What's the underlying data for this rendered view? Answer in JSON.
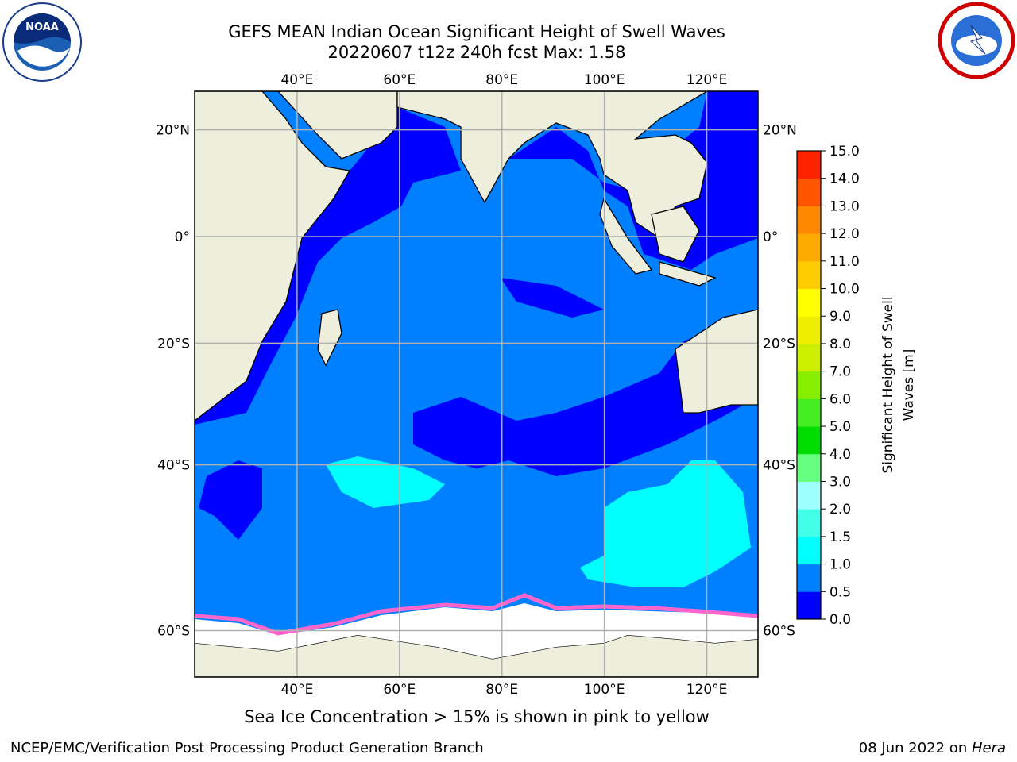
{
  "header": {
    "title_line1": "GEFS MEAN Indian Ocean Significant Height of Swell Waves",
    "title_line2": "20220607 t12z 240h fcst   Max: 1.58"
  },
  "logos": {
    "left": {
      "icon": "noaa-logo",
      "text": "NOAA"
    },
    "right": {
      "icon": "nws-logo"
    }
  },
  "map": {
    "lon_ticks": [
      "40°E",
      "60°E",
      "80°E",
      "100°E",
      "120°E"
    ],
    "lon_values": [
      40,
      60,
      80,
      100,
      120
    ],
    "lat_ticks": [
      "20°N",
      "0°",
      "20°S",
      "40°S",
      "60°S"
    ],
    "lat_values": [
      20,
      0,
      -20,
      -40,
      -60
    ],
    "lon_range": [
      20,
      130
    ],
    "gridlines": true
  },
  "colorbar": {
    "label": "Significant Height of Swell Waves [m]",
    "ticks": [
      "0.0",
      "0.5",
      "1.0",
      "1.5",
      "2.0",
      "3.0",
      "4.0",
      "5.0",
      "6.0",
      "7.0",
      "8.0",
      "9.0",
      "10.0",
      "11.0",
      "12.0",
      "13.0",
      "14.0",
      "15.0"
    ],
    "colors": [
      "#0000ff",
      "#0080ff",
      "#00ffff",
      "#40ffe6",
      "#a0ffff",
      "#66ff80",
      "#00dd00",
      "#44ee22",
      "#88ee00",
      "#ccee00",
      "#eeee00",
      "#ffff00",
      "#ffcc00",
      "#ffaa00",
      "#ff8800",
      "#ff5500",
      "#ff2200"
    ],
    "colors_note": ""
  },
  "colors": {
    "land": "#eeeedc",
    "ocean_low": "#0000ff",
    "ocean_mid": "#0080ff",
    "ocean_high": "#00ffff",
    "ice": "#ffffff",
    "ice_edge": "#ff66cc"
  },
  "caption": "Sea Ice Concentration > 15% is shown in pink to yellow",
  "footer": {
    "left": "NCEP/EMC/Verification Post Processing Product Generation Branch",
    "right_prefix": "08 Jun 2022 on ",
    "right_host": "Hera"
  }
}
